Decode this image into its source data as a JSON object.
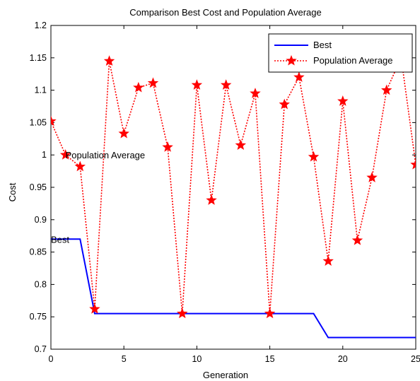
{
  "chart_data": {
    "type": "line",
    "title": "Comparison Best Cost and  Population Average",
    "xlabel": "Generation",
    "ylabel": "Cost",
    "xlim": [
      0,
      25
    ],
    "ylim": [
      0.7,
      1.2
    ],
    "xticks": [
      0,
      5,
      10,
      15,
      20,
      25
    ],
    "yticks": [
      0.7,
      0.75,
      0.8,
      0.85,
      0.9,
      0.95,
      1.0,
      1.05,
      1.1,
      1.15,
      1.2
    ],
    "ytick_labels": [
      "0.7",
      "0.75",
      "0.8",
      "0.85",
      "0.9",
      "0.95",
      "1",
      "1.05",
      "1.1",
      "1.15",
      "1.2"
    ],
    "grid": false,
    "legend_position": "top-right",
    "series": [
      {
        "name": "Best",
        "color": "#0000ff",
        "style": "solid",
        "x": [
          0,
          1,
          2,
          3,
          4,
          5,
          6,
          7,
          8,
          9,
          10,
          11,
          12,
          13,
          14,
          15,
          16,
          17,
          18,
          19,
          20,
          21,
          22,
          23,
          24,
          25
        ],
        "y": [
          0.87,
          0.87,
          0.87,
          0.755,
          0.755,
          0.755,
          0.755,
          0.755,
          0.755,
          0.755,
          0.755,
          0.755,
          0.755,
          0.755,
          0.755,
          0.755,
          0.755,
          0.755,
          0.755,
          0.718,
          0.718,
          0.718,
          0.718,
          0.718,
          0.718,
          0.718
        ]
      },
      {
        "name": "Population Average",
        "color": "#ff0000",
        "style": "dotted",
        "marker": "star",
        "x": [
          0,
          1,
          2,
          3,
          4,
          5,
          6,
          7,
          8,
          9,
          10,
          11,
          12,
          13,
          14,
          15,
          16,
          17,
          18,
          19,
          20,
          21,
          22,
          23,
          24,
          25
        ],
        "y": [
          1.052,
          1.0,
          0.982,
          0.762,
          1.145,
          1.033,
          1.104,
          1.111,
          1.012,
          0.755,
          1.108,
          0.93,
          1.108,
          1.015,
          1.095,
          0.755,
          1.078,
          1.12,
          0.997,
          0.836,
          1.083,
          0.868,
          0.965,
          1.1,
          1.15,
          0.985
        ]
      }
    ],
    "annotations": [
      {
        "text": "Population Average",
        "x": 1.0,
        "y": 1.0
      },
      {
        "text": "Best",
        "x": 0.0,
        "y": 0.87
      }
    ]
  }
}
